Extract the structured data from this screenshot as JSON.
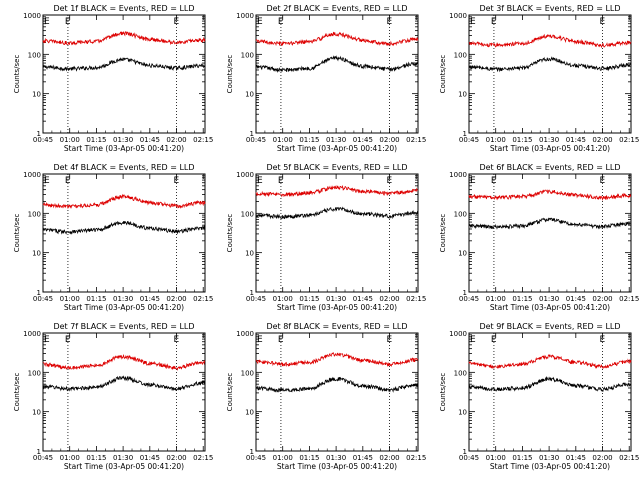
{
  "figure": {
    "xlabel": "Start Time (03-Apr-05 00:41:20)",
    "ylabel": "Counts/sec",
    "x_ticks": [
      "00:45",
      "01:00",
      "01:15",
      "01:30",
      "01:45",
      "02:00",
      "02:15"
    ],
    "y_ticks": [
      "1",
      "10",
      "100",
      "1000"
    ],
    "marker_label": "E",
    "colors": {
      "events": "#000000",
      "lld": "#dd0000",
      "axes": "#000000"
    }
  },
  "chart_data": [
    {
      "type": "line",
      "title": "Det 1f BLACK = Events, RED = LLD",
      "x_range_min": [
        45,
        136
      ],
      "ylim": [
        1,
        1000
      ],
      "y_scale": "log",
      "event_markers_min": [
        59,
        120
      ],
      "x": [
        45,
        60,
        75,
        90,
        105,
        120,
        135
      ],
      "series": [
        {
          "name": "Events",
          "values": [
            48,
            43,
            46,
            74,
            52,
            45,
            52
          ]
        },
        {
          "name": "LLD",
          "values": [
            220,
            195,
            215,
            340,
            240,
            200,
            235
          ]
        }
      ]
    },
    {
      "type": "line",
      "title": "Det 2f BLACK = Events, RED = LLD",
      "x_range_min": [
        45,
        136
      ],
      "ylim": [
        1,
        1000
      ],
      "y_scale": "log",
      "event_markers_min": [
        59,
        120
      ],
      "x": [
        45,
        60,
        75,
        90,
        105,
        120,
        135
      ],
      "series": [
        {
          "name": "Events",
          "values": [
            48,
            40,
            44,
            80,
            50,
            42,
            58
          ]
        },
        {
          "name": "LLD",
          "values": [
            215,
            185,
            210,
            330,
            230,
            185,
            240
          ]
        }
      ]
    },
    {
      "type": "line",
      "title": "Det 3f BLACK = Events, RED = LLD",
      "x_range_min": [
        45,
        136
      ],
      "ylim": [
        1,
        1000
      ],
      "y_scale": "log",
      "event_markers_min": [
        59,
        120
      ],
      "x": [
        45,
        60,
        75,
        90,
        105,
        120,
        135
      ],
      "series": [
        {
          "name": "Events",
          "values": [
            48,
            42,
            45,
            76,
            52,
            44,
            54
          ]
        },
        {
          "name": "LLD",
          "values": [
            190,
            170,
            190,
            290,
            210,
            170,
            200
          ]
        }
      ]
    },
    {
      "type": "line",
      "title": "Det 4f BLACK = Events, RED = LLD",
      "x_range_min": [
        45,
        136
      ],
      "ylim": [
        1,
        1000
      ],
      "y_scale": "log",
      "event_markers_min": [
        59,
        120
      ],
      "x": [
        45,
        60,
        75,
        90,
        105,
        120,
        135
      ],
      "series": [
        {
          "name": "Events",
          "values": [
            38,
            34,
            38,
            58,
            42,
            35,
            42
          ]
        },
        {
          "name": "LLD",
          "values": [
            165,
            150,
            165,
            265,
            185,
            155,
            185
          ]
        }
      ]
    },
    {
      "type": "line",
      "title": "Det 5f BLACK = Events, RED = LLD",
      "x_range_min": [
        45,
        136
      ],
      "ylim": [
        1,
        1000
      ],
      "y_scale": "log",
      "event_markers_min": [
        59,
        120
      ],
      "x": [
        45,
        60,
        75,
        90,
        105,
        120,
        135
      ],
      "series": [
        {
          "name": "Events",
          "values": [
            90,
            82,
            90,
            130,
            98,
            85,
            105
          ]
        },
        {
          "name": "LLD",
          "values": [
            320,
            300,
            330,
            460,
            360,
            320,
            380
          ]
        }
      ]
    },
    {
      "type": "line",
      "title": "Det 6f BLACK = Events, RED = LLD",
      "x_range_min": [
        45,
        136
      ],
      "ylim": [
        1,
        1000
      ],
      "y_scale": "log",
      "event_markers_min": [
        59,
        120
      ],
      "x": [
        45,
        60,
        75,
        90,
        105,
        120,
        135
      ],
      "series": [
        {
          "name": "Events",
          "values": [
            48,
            45,
            48,
            70,
            52,
            46,
            55
          ]
        },
        {
          "name": "LLD",
          "values": [
            270,
            250,
            270,
            360,
            290,
            250,
            285
          ]
        }
      ]
    },
    {
      "type": "line",
      "title": "Det 7f BLACK = Events, RED = LLD",
      "x_range_min": [
        45,
        136
      ],
      "ylim": [
        1,
        1000
      ],
      "y_scale": "log",
      "event_markers_min": [
        59,
        120
      ],
      "x": [
        45,
        60,
        75,
        90,
        105,
        120,
        135
      ],
      "series": [
        {
          "name": "Events",
          "values": [
            44,
            38,
            42,
            72,
            48,
            38,
            55
          ]
        },
        {
          "name": "LLD",
          "values": [
            160,
            130,
            150,
            250,
            170,
            130,
            180
          ]
        }
      ]
    },
    {
      "type": "line",
      "title": "Det 8f BLACK = Events, RED = LLD",
      "x_range_min": [
        45,
        136
      ],
      "ylim": [
        1,
        1000
      ],
      "y_scale": "log",
      "event_markers_min": [
        59,
        120
      ],
      "x": [
        45,
        60,
        75,
        90,
        105,
        120,
        135
      ],
      "series": [
        {
          "name": "Events",
          "values": [
            40,
            35,
            38,
            68,
            45,
            36,
            48
          ]
        },
        {
          "name": "LLD",
          "values": [
            190,
            160,
            180,
            290,
            200,
            160,
            210
          ]
        }
      ]
    },
    {
      "type": "line",
      "title": "Det 9f BLACK = Events, RED = LLD",
      "x_range_min": [
        45,
        136
      ],
      "ylim": [
        1,
        1000
      ],
      "y_scale": "log",
      "event_markers_min": [
        59,
        120
      ],
      "x": [
        45,
        60,
        75,
        90,
        105,
        120,
        135
      ],
      "series": [
        {
          "name": "Events",
          "values": [
            42,
            37,
            40,
            68,
            46,
            37,
            50
          ]
        },
        {
          "name": "LLD",
          "values": [
            170,
            140,
            160,
            250,
            180,
            140,
            190
          ]
        }
      ]
    }
  ]
}
